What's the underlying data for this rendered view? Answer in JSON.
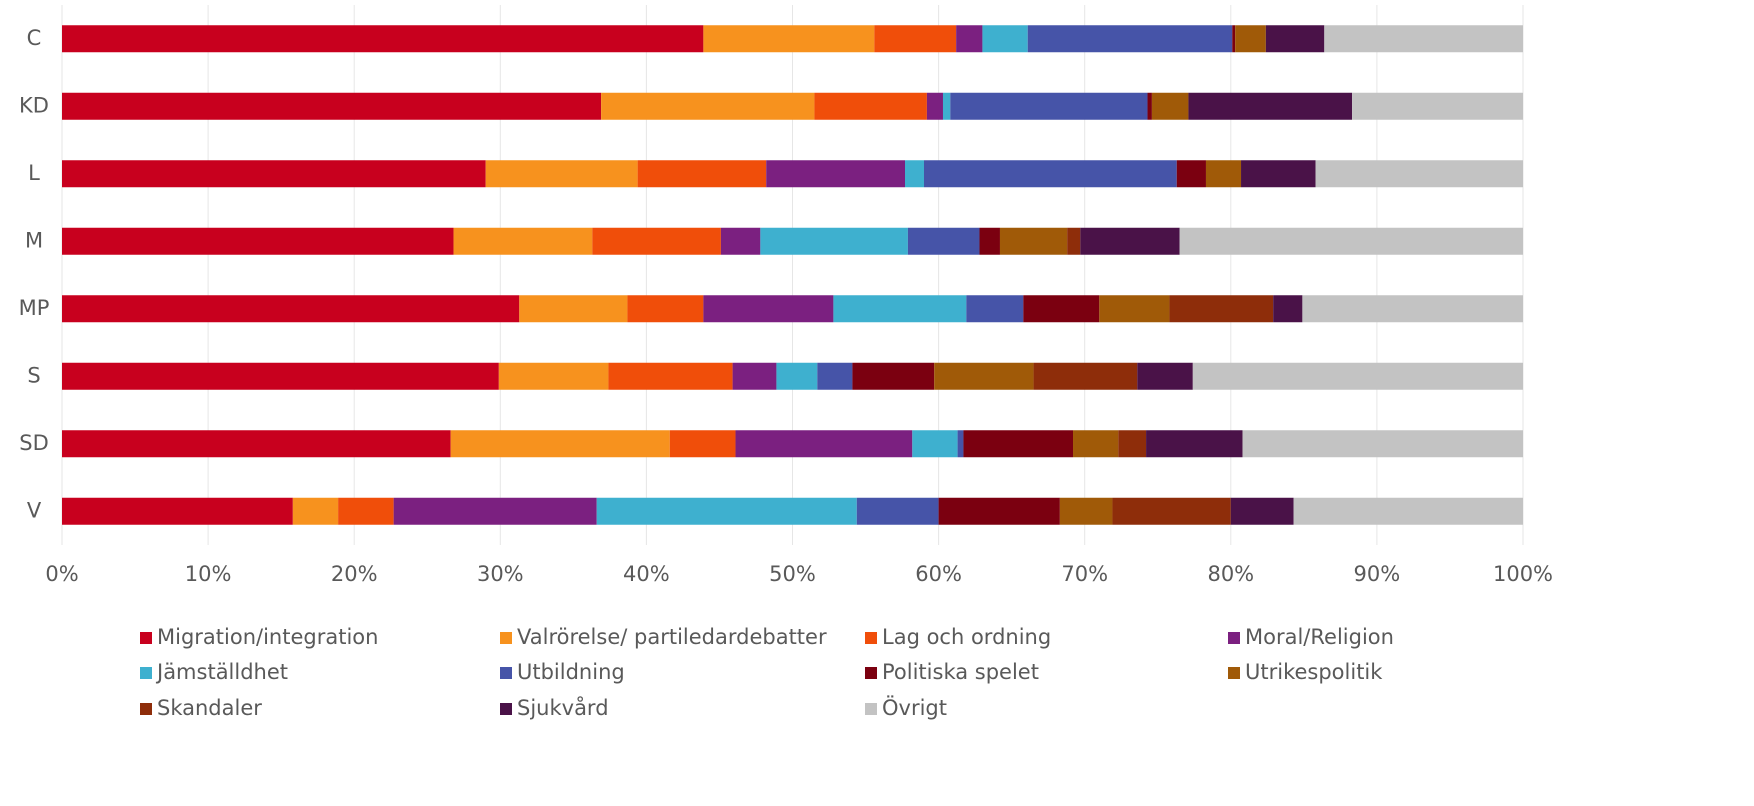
{
  "chart_data": {
    "type": "stacked-barh",
    "categories": [
      "C",
      "KD",
      "L",
      "M",
      "MP",
      "S",
      "SD",
      "V"
    ],
    "xlim": [
      0,
      100
    ],
    "xticks": [
      {
        "value": 0,
        "label": "0%"
      },
      {
        "value": 10,
        "label": "10%"
      },
      {
        "value": 20,
        "label": "20%"
      },
      {
        "value": 30,
        "label": "30%"
      },
      {
        "value": 40,
        "label": "40%"
      },
      {
        "value": 50,
        "label": "50%"
      },
      {
        "value": 60,
        "label": "60%"
      },
      {
        "value": 70,
        "label": "70%"
      },
      {
        "value": 80,
        "label": "80%"
      },
      {
        "value": 90,
        "label": "90%"
      },
      {
        "value": 100,
        "label": "100%"
      }
    ],
    "grid": true,
    "legend": "bottom",
    "series": [
      {
        "name": "Migration/integration",
        "color": "#c8001e",
        "values": [
          43.9,
          36.9,
          29.0,
          26.8,
          31.3,
          29.9,
          26.6,
          15.8
        ]
      },
      {
        "name": "Valrörelse/ partiledardebatter",
        "color": "#f7921e",
        "values": [
          11.7,
          14.6,
          10.4,
          9.5,
          7.4,
          7.5,
          15.0,
          3.1
        ]
      },
      {
        "name": "Lag och ordning",
        "color": "#f04e0a",
        "values": [
          5.6,
          7.7,
          8.8,
          8.8,
          5.2,
          8.5,
          4.5,
          3.8
        ]
      },
      {
        "name": "Moral/Religion",
        "color": "#7b2080",
        "values": [
          1.8,
          1.1,
          9.5,
          2.7,
          8.9,
          3.0,
          12.1,
          13.9
        ]
      },
      {
        "name": "Jämställdhet",
        "color": "#3eb0cf",
        "values": [
          3.1,
          0.5,
          1.3,
          10.1,
          9.1,
          2.8,
          3.1,
          17.8
        ]
      },
      {
        "name": "Utbildning",
        "color": "#4654a8",
        "values": [
          14.0,
          13.5,
          17.3,
          4.9,
          3.9,
          2.4,
          0.4,
          5.6
        ]
      },
      {
        "name": "Politiska spelet",
        "color": "#7b0010",
        "values": [
          0.2,
          0.3,
          2.0,
          1.4,
          5.2,
          5.6,
          7.5,
          8.3
        ]
      },
      {
        "name": "Utrikespolitik",
        "color": "#a05a08",
        "values": [
          2.1,
          2.5,
          2.4,
          4.6,
          4.8,
          6.8,
          3.1,
          3.6
        ]
      },
      {
        "name": "Skandaler",
        "color": "#8e2d0a",
        "values": [
          0,
          0,
          0,
          0.9,
          7.1,
          7.1,
          1.9,
          8.1
        ]
      },
      {
        "name": "Sjukvård",
        "color": "#4a1248",
        "values": [
          4.0,
          11.2,
          5.1,
          6.8,
          2.0,
          3.8,
          6.6,
          4.3
        ]
      },
      {
        "name": "Övrigt",
        "color": "#c3c3c3",
        "values": [
          13.6,
          11.7,
          14.2,
          23.5,
          15.1,
          22.6,
          19.2,
          15.7
        ]
      }
    ]
  }
}
